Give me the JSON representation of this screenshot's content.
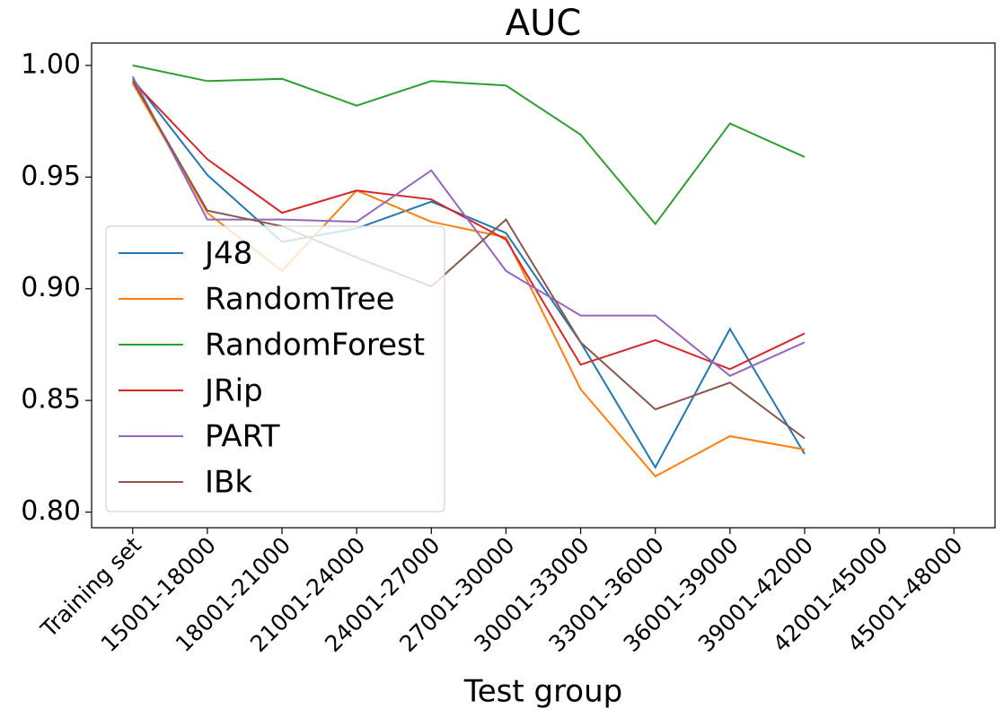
{
  "chart_data": {
    "type": "line",
    "title": "AUC",
    "x_label": "Test group",
    "categories": [
      "Training set",
      "15001-18000",
      "18001-21000",
      "21001-24000",
      "24001-27000",
      "27001-30000",
      "30001-33000",
      "33001-36000",
      "36001-39000",
      "39001-42000",
      "42001-45000",
      "45001-48000"
    ],
    "series": [
      {
        "name": "J48",
        "color": "#1f77b4",
        "values": [
          0.994,
          0.951,
          0.921,
          0.927,
          0.939,
          0.925,
          0.876,
          0.82,
          0.882,
          0.826,
          null,
          null
        ]
      },
      {
        "name": "RandomTree",
        "color": "#ff7f0e",
        "values": [
          0.992,
          0.934,
          0.908,
          0.944,
          0.93,
          0.923,
          0.855,
          0.816,
          0.834,
          0.828,
          null,
          null
        ]
      },
      {
        "name": "RandomForest",
        "color": "#2ca02c",
        "values": [
          1.0,
          0.993,
          0.994,
          0.982,
          0.993,
          0.991,
          0.969,
          0.929,
          0.974,
          0.959,
          null,
          null
        ]
      },
      {
        "name": "JRip",
        "color": "#d62728",
        "values": [
          0.993,
          0.958,
          0.934,
          0.944,
          0.94,
          0.922,
          0.866,
          0.877,
          0.864,
          0.88,
          null,
          null
        ]
      },
      {
        "name": "PART",
        "color": "#9467bd",
        "values": [
          0.995,
          0.931,
          0.931,
          0.93,
          0.953,
          0.908,
          0.888,
          0.888,
          0.861,
          0.876,
          null,
          null
        ]
      },
      {
        "name": "IBk",
        "color": "#8c564b",
        "values": [
          0.993,
          0.935,
          0.928,
          0.914,
          0.901,
          0.931,
          0.876,
          0.846,
          0.858,
          0.833,
          null,
          null
        ]
      }
    ],
    "ylim": [
      0.793,
      1.01
    ],
    "yticks": [
      {
        "value": 0.8,
        "label": "0.80"
      },
      0.85,
      {
        "value": 0.9,
        "label": "0.90"
      },
      0.95,
      {
        "value": 1.0,
        "label": "1.00"
      }
    ],
    "grid": false,
    "legend": "lower left"
  }
}
